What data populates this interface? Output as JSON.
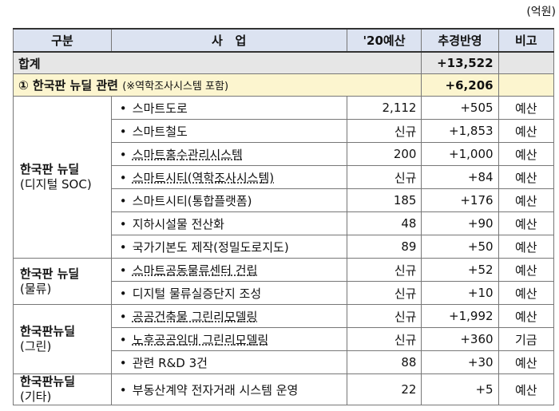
{
  "unit_label": "(억원)",
  "headers": {
    "category": "구분",
    "project": "사   업",
    "budget2020": "'20예산",
    "supplementary": "추경반영",
    "note": "비고"
  },
  "total": {
    "label": "합계",
    "value": "+13,522"
  },
  "subtotal": {
    "label": "① 한국판 뉴딜 관련",
    "note": "(※역학조사시스템 포함)",
    "value": "+6,206"
  },
  "groups": [
    {
      "title": "한국판 뉴딜",
      "subtitle": "(디지털 SOC)",
      "items": [
        {
          "name": "스마트도로",
          "budget": "2,112",
          "add": "+505",
          "note": "예산"
        },
        {
          "name": "스마트철도",
          "budget": "신규",
          "add": "+1,853",
          "note": "예산"
        },
        {
          "name": "스마트홍수관리시스템",
          "budget": "200",
          "add": "+1,000",
          "note": "예산"
        },
        {
          "name": "스마트시티(역학조사시스템)",
          "budget": "신규",
          "add": "+84",
          "note": "예산"
        },
        {
          "name": "스마트시티(통합플랫폼)",
          "budget": "185",
          "add": "+176",
          "note": "예산"
        },
        {
          "name": "지하시설물 전산화",
          "budget": "48",
          "add": "+90",
          "note": "예산"
        },
        {
          "name": "국가기본도 제작(정밀도로지도)",
          "budget": "89",
          "add": "+50",
          "note": "예산"
        }
      ]
    },
    {
      "title": "한국판 뉴딜",
      "subtitle": "(물류)",
      "items": [
        {
          "name": "스마트공동물류센터 건립",
          "budget": "신규",
          "add": "+52",
          "note": "예산"
        },
        {
          "name": "디지털 물류실증단지 조성",
          "budget": "신규",
          "add": "+10",
          "note": "예산"
        }
      ]
    },
    {
      "title": "한국판뉴딜",
      "subtitle": "(그린)",
      "items": [
        {
          "name": "공공건축물 그린리모델링",
          "budget": "신규",
          "add": "+1,992",
          "note": "예산"
        },
        {
          "name": "노후공공임대 그린리모델링",
          "budget": "신규",
          "add": "+360",
          "note": "기금"
        },
        {
          "name": "관련 R&D 3건",
          "budget": "88",
          "add": "+30",
          "note": "예산"
        }
      ]
    },
    {
      "title": "한국판뉴딜",
      "subtitle": "(기타)",
      "items": [
        {
          "name": "부동산계약 전자거래 시스템 운영",
          "budget": "22",
          "add": "+5",
          "note": "예산"
        }
      ]
    }
  ]
}
